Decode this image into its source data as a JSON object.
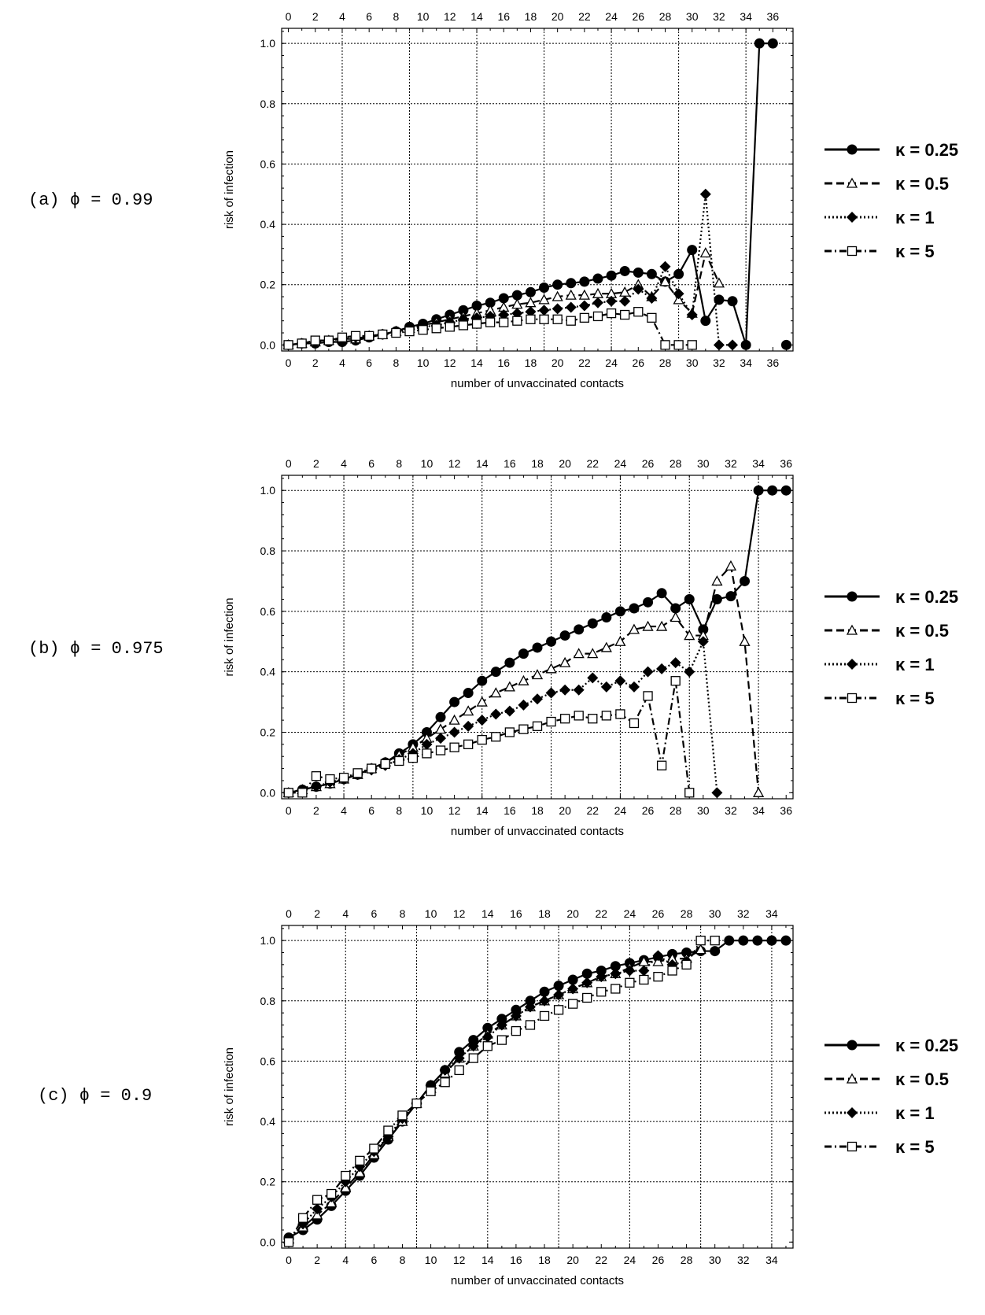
{
  "chart_data": [
    {
      "type": "line",
      "panel_label": "(a) ϕ = 0.99",
      "xlabel": "number of unvaccinated contacts",
      "ylabel": "risk of infection",
      "xlim": [
        -0.5,
        37.5
      ],
      "ylim": [
        -0.02,
        1.05
      ],
      "x_ticks": [
        0,
        2,
        4,
        6,
        8,
        10,
        12,
        14,
        16,
        18,
        20,
        22,
        24,
        26,
        28,
        30,
        32,
        34,
        36
      ],
      "y_ticks": [
        0.0,
        0.2,
        0.4,
        0.6,
        0.8,
        1.0
      ],
      "y_tick_labels": [
        "0.0",
        "0.2",
        "0.4",
        "0.6",
        "0.8",
        "1.0"
      ],
      "grid_x": [
        4,
        9,
        14,
        19,
        24,
        29,
        34
      ],
      "grid_y": [
        0.2,
        0.4,
        0.6,
        0.8,
        1.0
      ],
      "series": [
        {
          "name": "κ = 0.25",
          "style": "solid",
          "marker": "circle",
          "x": [
            0,
            1,
            2,
            3,
            4,
            5,
            6,
            7,
            8,
            9,
            10,
            11,
            12,
            13,
            14,
            15,
            16,
            17,
            18,
            19,
            20,
            21,
            22,
            23,
            24,
            25,
            26,
            27,
            28,
            29,
            30,
            31,
            32,
            33,
            34,
            35,
            36,
            37
          ],
          "y": [
            0.0,
            0.005,
            0.005,
            0.01,
            0.01,
            0.015,
            0.025,
            0.035,
            0.045,
            0.06,
            0.07,
            0.085,
            0.1,
            0.115,
            0.13,
            0.14,
            0.155,
            0.165,
            0.175,
            0.19,
            0.2,
            0.205,
            0.21,
            0.22,
            0.23,
            0.245,
            0.24,
            0.235,
            0.21,
            0.235,
            0.315,
            0.08,
            0.15,
            0.145,
            0.0,
            1.0,
            1.0,
            0.0
          ],
          "breaks_before": [
            37
          ]
        },
        {
          "name": "κ = 0.5",
          "style": "dashed",
          "marker": "triangle",
          "x": [
            0,
            1,
            2,
            3,
            4,
            5,
            6,
            7,
            8,
            9,
            10,
            11,
            12,
            13,
            14,
            15,
            16,
            17,
            18,
            19,
            20,
            21,
            22,
            23,
            24,
            25,
            26,
            27,
            28,
            29,
            30,
            31,
            32
          ],
          "y": [
            0.0,
            0.005,
            0.01,
            0.015,
            0.02,
            0.02,
            0.03,
            0.035,
            0.045,
            0.055,
            0.065,
            0.075,
            0.085,
            0.095,
            0.105,
            0.115,
            0.125,
            0.135,
            0.14,
            0.15,
            0.16,
            0.165,
            0.165,
            0.17,
            0.17,
            0.175,
            0.2,
            0.16,
            0.21,
            0.15,
            0.105,
            0.305,
            0.205
          ]
        },
        {
          "name": "κ = 1",
          "style": "dotted",
          "marker": "diamond",
          "x": [
            0,
            1,
            2,
            3,
            4,
            5,
            6,
            7,
            8,
            9,
            10,
            11,
            12,
            13,
            14,
            15,
            16,
            17,
            18,
            19,
            20,
            21,
            22,
            23,
            24,
            25,
            26,
            27,
            28,
            29,
            30,
            31,
            32,
            33
          ],
          "y": [
            0.0,
            0.005,
            0.01,
            0.015,
            0.02,
            0.025,
            0.03,
            0.035,
            0.045,
            0.05,
            0.06,
            0.065,
            0.075,
            0.085,
            0.09,
            0.095,
            0.1,
            0.105,
            0.11,
            0.115,
            0.12,
            0.125,
            0.13,
            0.14,
            0.145,
            0.145,
            0.185,
            0.155,
            0.26,
            0.17,
            0.1,
            0.5,
            0.0,
            0.0
          ]
        },
        {
          "name": "κ = 5",
          "style": "dashdot",
          "marker": "square",
          "x": [
            0,
            1,
            2,
            3,
            4,
            5,
            6,
            7,
            8,
            9,
            10,
            11,
            12,
            13,
            14,
            15,
            16,
            17,
            18,
            19,
            20,
            21,
            22,
            23,
            24,
            25,
            26,
            27,
            28,
            29,
            30
          ],
          "y": [
            0.0,
            0.005,
            0.015,
            0.015,
            0.025,
            0.03,
            0.03,
            0.035,
            0.04,
            0.045,
            0.05,
            0.055,
            0.06,
            0.065,
            0.07,
            0.075,
            0.075,
            0.08,
            0.085,
            0.085,
            0.085,
            0.08,
            0.09,
            0.095,
            0.105,
            0.1,
            0.11,
            0.09,
            0.0,
            0.0,
            0.0
          ]
        }
      ]
    },
    {
      "type": "line",
      "panel_label": "(b) ϕ = 0.975",
      "xlabel": "number of unvaccinated contacts",
      "ylabel": "risk of infection",
      "xlim": [
        -0.5,
        36.5
      ],
      "ylim": [
        -0.02,
        1.05
      ],
      "x_ticks": [
        0,
        2,
        4,
        6,
        8,
        10,
        12,
        14,
        16,
        18,
        20,
        22,
        24,
        26,
        28,
        30,
        32,
        34,
        36
      ],
      "y_ticks": [
        0.0,
        0.2,
        0.4,
        0.6,
        0.8,
        1.0
      ],
      "y_tick_labels": [
        "0.0",
        "0.2",
        "0.4",
        "0.6",
        "0.8",
        "1.0"
      ],
      "grid_x": [
        4,
        9,
        14,
        19,
        24,
        29,
        34
      ],
      "grid_y": [
        0.2,
        0.4,
        0.6,
        0.8,
        1.0
      ],
      "series": [
        {
          "name": "κ = 0.25",
          "style": "solid",
          "marker": "circle",
          "x": [
            0,
            1,
            2,
            3,
            4,
            5,
            6,
            7,
            8,
            9,
            10,
            11,
            12,
            13,
            14,
            15,
            16,
            17,
            18,
            19,
            20,
            21,
            22,
            23,
            24,
            25,
            26,
            27,
            28,
            29,
            30,
            31,
            32,
            33,
            34,
            35,
            36
          ],
          "y": [
            0.0,
            0.01,
            0.02,
            0.03,
            0.045,
            0.06,
            0.08,
            0.1,
            0.13,
            0.16,
            0.2,
            0.25,
            0.3,
            0.33,
            0.37,
            0.4,
            0.43,
            0.46,
            0.48,
            0.5,
            0.52,
            0.54,
            0.56,
            0.58,
            0.6,
            0.61,
            0.63,
            0.66,
            0.61,
            0.64,
            0.54,
            0.64,
            0.65,
            0.7,
            1.0,
            1.0,
            1.0
          ]
        },
        {
          "name": "κ = 0.5",
          "style": "dashed",
          "marker": "triangle",
          "x": [
            0,
            1,
            2,
            3,
            4,
            5,
            6,
            7,
            8,
            9,
            10,
            11,
            12,
            13,
            14,
            15,
            16,
            17,
            18,
            19,
            20,
            21,
            22,
            23,
            24,
            25,
            26,
            27,
            28,
            29,
            30,
            31,
            32,
            33,
            34
          ],
          "y": [
            0.0,
            0.01,
            0.02,
            0.03,
            0.045,
            0.06,
            0.08,
            0.1,
            0.125,
            0.15,
            0.18,
            0.21,
            0.24,
            0.27,
            0.3,
            0.33,
            0.35,
            0.37,
            0.39,
            0.41,
            0.43,
            0.46,
            0.46,
            0.48,
            0.5,
            0.54,
            0.55,
            0.55,
            0.58,
            0.52,
            0.52,
            0.7,
            0.75,
            0.5,
            0.0
          ]
        },
        {
          "name": "κ = 1",
          "style": "dotted",
          "marker": "diamond",
          "x": [
            0,
            1,
            2,
            3,
            4,
            5,
            6,
            7,
            8,
            9,
            10,
            11,
            12,
            13,
            14,
            15,
            16,
            17,
            18,
            19,
            20,
            21,
            22,
            23,
            24,
            25,
            26,
            27,
            28,
            29,
            30,
            31
          ],
          "y": [
            0.0,
            0.01,
            0.02,
            0.035,
            0.045,
            0.06,
            0.075,
            0.09,
            0.11,
            0.13,
            0.16,
            0.18,
            0.2,
            0.22,
            0.24,
            0.26,
            0.27,
            0.29,
            0.31,
            0.33,
            0.34,
            0.34,
            0.38,
            0.35,
            0.37,
            0.35,
            0.4,
            0.41,
            0.43,
            0.4,
            0.5,
            0.0
          ]
        },
        {
          "name": "κ = 5",
          "style": "dashdot",
          "marker": "square",
          "x": [
            0,
            1,
            2,
            3,
            4,
            5,
            6,
            7,
            8,
            9,
            10,
            11,
            12,
            13,
            14,
            15,
            16,
            17,
            18,
            19,
            20,
            21,
            22,
            23,
            24,
            25,
            26,
            27,
            28,
            29
          ],
          "y": [
            0.0,
            0.0,
            0.055,
            0.045,
            0.05,
            0.065,
            0.08,
            0.095,
            0.105,
            0.115,
            0.13,
            0.14,
            0.15,
            0.16,
            0.175,
            0.185,
            0.2,
            0.21,
            0.22,
            0.235,
            0.245,
            0.255,
            0.245,
            0.255,
            0.26,
            0.23,
            0.32,
            0.09,
            0.37,
            0.0
          ]
        }
      ]
    },
    {
      "type": "line",
      "panel_label": "(c) ϕ = 0.9",
      "xlabel": "number of unvaccinated contacts",
      "ylabel": "risk of infection",
      "xlim": [
        -0.5,
        35.5
      ],
      "ylim": [
        -0.02,
        1.05
      ],
      "x_ticks": [
        0,
        2,
        4,
        6,
        8,
        10,
        12,
        14,
        16,
        18,
        20,
        22,
        24,
        26,
        28,
        30,
        32,
        34
      ],
      "y_ticks": [
        0.0,
        0.2,
        0.4,
        0.6,
        0.8,
        1.0
      ],
      "y_tick_labels": [
        "0.0",
        "0.2",
        "0.4",
        "0.6",
        "0.8",
        "1.0"
      ],
      "grid_x": [
        4,
        9,
        14,
        19,
        24,
        29,
        34
      ],
      "grid_y": [
        0.2,
        0.4,
        0.6,
        0.8,
        1.0
      ],
      "series": [
        {
          "name": "κ = 0.25",
          "style": "solid",
          "marker": "circle",
          "x": [
            0,
            1,
            2,
            3,
            4,
            5,
            6,
            7,
            8,
            9,
            10,
            11,
            12,
            13,
            14,
            15,
            16,
            17,
            18,
            19,
            20,
            21,
            22,
            23,
            24,
            25,
            26,
            27,
            28,
            29,
            30,
            31,
            32,
            33,
            34,
            35
          ],
          "y": [
            0.015,
            0.04,
            0.075,
            0.12,
            0.17,
            0.22,
            0.28,
            0.34,
            0.4,
            0.46,
            0.52,
            0.57,
            0.63,
            0.67,
            0.71,
            0.74,
            0.77,
            0.8,
            0.83,
            0.85,
            0.87,
            0.89,
            0.9,
            0.915,
            0.925,
            0.935,
            0.945,
            0.955,
            0.96,
            0.965,
            0.965,
            1.0,
            1.0,
            1.0,
            1.0,
            1.0
          ]
        },
        {
          "name": "κ = 0.5",
          "style": "dashed",
          "marker": "triangle",
          "x": [
            0,
            1,
            2,
            3,
            4,
            5,
            6,
            7,
            8,
            9,
            10,
            11,
            12,
            13,
            14,
            15,
            16,
            17,
            18,
            19,
            20,
            21,
            22,
            23,
            24,
            25,
            26,
            27,
            28,
            29
          ],
          "y": [
            0.01,
            0.05,
            0.09,
            0.13,
            0.18,
            0.23,
            0.29,
            0.35,
            0.4,
            0.46,
            0.51,
            0.56,
            0.61,
            0.65,
            0.69,
            0.72,
            0.75,
            0.78,
            0.8,
            0.82,
            0.84,
            0.86,
            0.88,
            0.89,
            0.91,
            0.93,
            0.93,
            0.94,
            0.94,
            0.97
          ]
        },
        {
          "name": "κ = 1",
          "style": "dotted",
          "marker": "diamond",
          "x": [
            0,
            1,
            2,
            3,
            4,
            5,
            6,
            7,
            8,
            9,
            10,
            11,
            12,
            13,
            14,
            15,
            16,
            17,
            18,
            19,
            20,
            21,
            22,
            23,
            24,
            25,
            26,
            27,
            28
          ],
          "y": [
            0.01,
            0.06,
            0.11,
            0.15,
            0.2,
            0.25,
            0.3,
            0.35,
            0.41,
            0.46,
            0.52,
            0.57,
            0.61,
            0.65,
            0.68,
            0.72,
            0.75,
            0.78,
            0.8,
            0.82,
            0.84,
            0.86,
            0.88,
            0.89,
            0.9,
            0.9,
            0.95,
            0.92,
            0.93
          ]
        },
        {
          "name": "κ = 5",
          "style": "dashdot",
          "marker": "square",
          "x": [
            0,
            1,
            2,
            3,
            4,
            5,
            6,
            7,
            8,
            9,
            10,
            11,
            12,
            13,
            14,
            15,
            16,
            17,
            18,
            19,
            20,
            21,
            22,
            23,
            24,
            25,
            26,
            27,
            28,
            29,
            30
          ],
          "y": [
            0.0,
            0.08,
            0.14,
            0.16,
            0.22,
            0.27,
            0.31,
            0.37,
            0.42,
            0.46,
            0.5,
            0.53,
            0.57,
            0.61,
            0.65,
            0.67,
            0.7,
            0.72,
            0.75,
            0.77,
            0.79,
            0.81,
            0.83,
            0.84,
            0.86,
            0.87,
            0.88,
            0.9,
            0.92,
            1.0,
            1.0
          ]
        }
      ]
    }
  ]
}
